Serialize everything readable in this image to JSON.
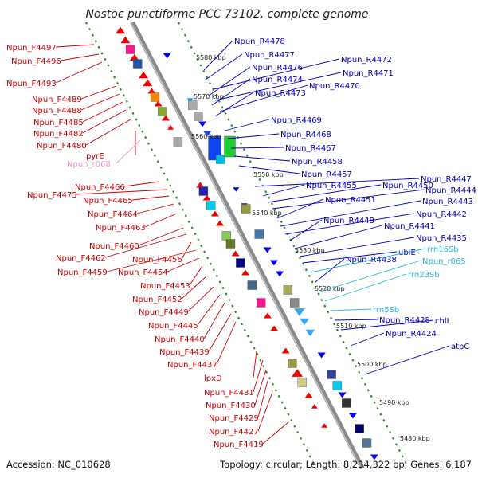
{
  "title": "Nostoc punctiforme PCC 73102, complete genome",
  "footer": {
    "accession": "Accession: NC_010628",
    "summary": "Topology: circular; Length: 8,234,322 bp; Genes: 6,187"
  },
  "colors": {
    "backbone": "#8a8a8a",
    "forward_label": "#cc0000",
    "reverse_label": "#0000bb",
    "rna_label": "#22bbdd",
    "pseudo_label": "#ee99cc",
    "dotted_guide": "#2e8b2e"
  },
  "ticks": [
    "5580 kbp",
    "5570 kbp",
    "5560 kbp",
    "5550 kbp",
    "5540 kbp",
    "5530 kbp",
    "5520 kbp",
    "5510 kbp",
    "5500 kbp",
    "5490 kbp",
    "5480 kbp"
  ],
  "left_labels": [
    {
      "text": "Npun_F4497",
      "strand": "forward"
    },
    {
      "text": "Npun_F4496",
      "strand": "forward"
    },
    {
      "text": "Npun_F4493",
      "strand": "forward"
    },
    {
      "text": "Npun_F4489",
      "strand": "forward"
    },
    {
      "text": "Npun_F4488",
      "strand": "forward"
    },
    {
      "text": "Npun_F4485",
      "strand": "forward"
    },
    {
      "text": "Npun_F4482",
      "strand": "forward"
    },
    {
      "text": "Npun_F4480",
      "strand": "forward"
    },
    {
      "text": "pyrE",
      "strand": "forward"
    },
    {
      "text": "Npun_r068",
      "strand": "pseudo"
    },
    {
      "text": "Npun_F4466",
      "strand": "forward"
    },
    {
      "text": "Npun_F4475",
      "strand": "forward"
    },
    {
      "text": "Npun_F4465",
      "strand": "forward"
    },
    {
      "text": "Npun_F4464",
      "strand": "forward"
    },
    {
      "text": "Npun_F4463",
      "strand": "forward"
    },
    {
      "text": "Npun_F4460",
      "strand": "forward"
    },
    {
      "text": "Npun_F4462",
      "strand": "forward"
    },
    {
      "text": "Npun_F4456",
      "strand": "forward"
    },
    {
      "text": "Npun_F4459",
      "strand": "forward"
    },
    {
      "text": "Npun_F4454",
      "strand": "forward"
    },
    {
      "text": "Npun_F4453",
      "strand": "forward"
    },
    {
      "text": "Npun_F4452",
      "strand": "forward"
    },
    {
      "text": "Npun_F4449",
      "strand": "forward"
    },
    {
      "text": "Npun_F4445",
      "strand": "forward"
    },
    {
      "text": "Npun_F4440",
      "strand": "forward"
    },
    {
      "text": "Npun_F4439",
      "strand": "forward"
    },
    {
      "text": "Npun_F4437",
      "strand": "forward"
    },
    {
      "text": "lpxD",
      "strand": "forward"
    },
    {
      "text": "Npun_F4431",
      "strand": "forward"
    },
    {
      "text": "Npun_F4430",
      "strand": "forward"
    },
    {
      "text": "Npun_F4429",
      "strand": "forward"
    },
    {
      "text": "Npun_F4427",
      "strand": "forward"
    },
    {
      "text": "Npun_F4419",
      "strand": "forward"
    }
  ],
  "right_labels": [
    {
      "text": "Npun_R4478",
      "strand": "reverse"
    },
    {
      "text": "Npun_R4477",
      "strand": "reverse"
    },
    {
      "text": "Npun_R4472",
      "strand": "reverse"
    },
    {
      "text": "Npun_R4476",
      "strand": "reverse"
    },
    {
      "text": "Npun_R4471",
      "strand": "reverse"
    },
    {
      "text": "Npun_R4474",
      "strand": "reverse"
    },
    {
      "text": "Npun_R4470",
      "strand": "reverse"
    },
    {
      "text": "Npun_R4473",
      "strand": "reverse"
    },
    {
      "text": "Npun_R4469",
      "strand": "reverse"
    },
    {
      "text": "Npun_R4468",
      "strand": "reverse"
    },
    {
      "text": "Npun_R4467",
      "strand": "reverse"
    },
    {
      "text": "Npun_R4458",
      "strand": "reverse"
    },
    {
      "text": "Npun_R4457",
      "strand": "reverse"
    },
    {
      "text": "Npun_R4447",
      "strand": "reverse"
    },
    {
      "text": "Npun_R4455",
      "strand": "reverse"
    },
    {
      "text": "Npun_R4450",
      "strand": "reverse"
    },
    {
      "text": "Npun_R4444",
      "strand": "reverse"
    },
    {
      "text": "Npun_R4451",
      "strand": "reverse"
    },
    {
      "text": "Npun_R4443",
      "strand": "reverse"
    },
    {
      "text": "Npun_R4442",
      "strand": "reverse"
    },
    {
      "text": "Npun_R4448",
      "strand": "reverse"
    },
    {
      "text": "Npun_R4441",
      "strand": "reverse"
    },
    {
      "text": "Npun_R4435",
      "strand": "reverse"
    },
    {
      "text": "ubiE",
      "strand": "reverse"
    },
    {
      "text": "rrn16Sb",
      "strand": "rna"
    },
    {
      "text": "Npun_R4438",
      "strand": "reverse"
    },
    {
      "text": "Npun_r065",
      "strand": "rna"
    },
    {
      "text": "rrn23Sb",
      "strand": "rna"
    },
    {
      "text": "rrn5Sb",
      "strand": "rna"
    },
    {
      "text": "Npun_R4428",
      "strand": "reverse"
    },
    {
      "text": "chlL",
      "strand": "reverse"
    },
    {
      "text": "Npun_R4424",
      "strand": "reverse"
    },
    {
      "text": "atpC",
      "strand": "reverse"
    }
  ]
}
